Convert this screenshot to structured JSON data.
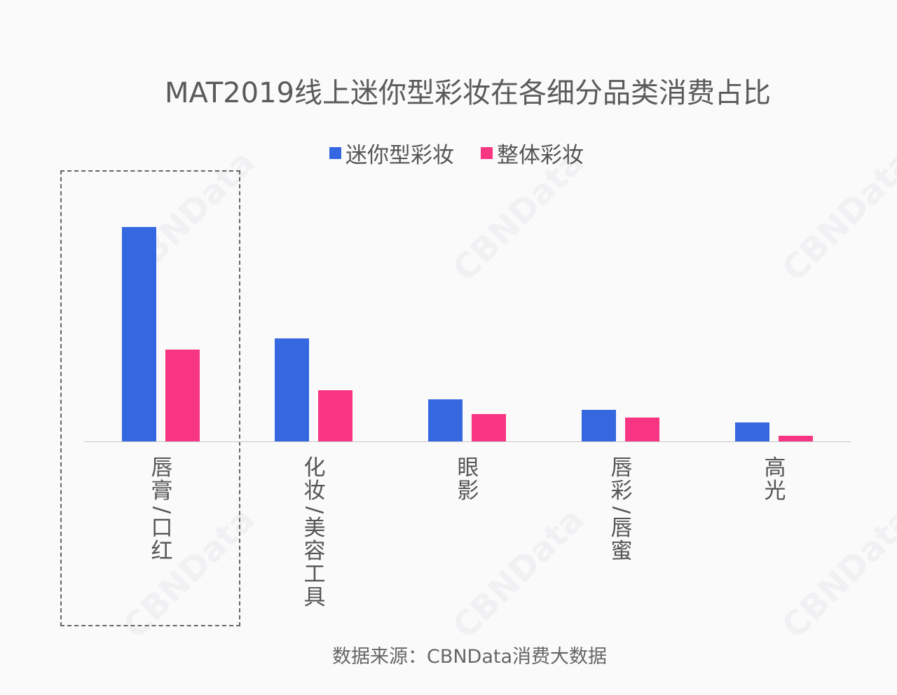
{
  "title": "MAT2019线上迷你型彩妆在各细分品类消费占比",
  "legend": [
    {
      "label": "迷你型彩妆",
      "color": "#3568e0"
    },
    {
      "label": "整体彩妆",
      "color": "#f83583"
    }
  ],
  "source": "数据来源：CBNData消费大数据",
  "watermark": "CBNData",
  "highlight_category": "唇膏/口红",
  "chart_data": {
    "type": "bar",
    "title": "MAT2019线上迷你型彩妆在各细分品类消费占比",
    "xlabel": "",
    "ylabel": "",
    "y_axis_shown": false,
    "grid": false,
    "legend_position": "top",
    "value_units": "relative (bar pixel height; no axis labels shown)",
    "categories": [
      "唇膏/口红",
      "化妆/美容工具",
      "眼影",
      "唇彩/唇蜜",
      "高光"
    ],
    "series": [
      {
        "name": "迷你型彩妆",
        "color": "#3568e0",
        "values": [
          307,
          148,
          61,
          46,
          28
        ]
      },
      {
        "name": "整体彩妆",
        "color": "#f83583",
        "values": [
          132,
          74,
          40,
          35,
          9
        ]
      }
    ],
    "annotations": [
      "Dashed box highlighting 唇膏/口红"
    ]
  }
}
